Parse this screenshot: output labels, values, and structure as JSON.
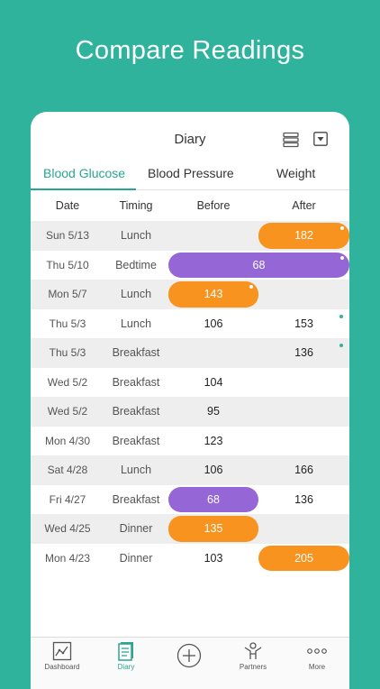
{
  "headline": "Compare Readings",
  "header": {
    "title": "Diary"
  },
  "tabs": [
    "Blood Glucose",
    "Blood Pressure",
    "Weight"
  ],
  "columns": {
    "date": "Date",
    "timing": "Timing",
    "before": "Before",
    "after": "After"
  },
  "rows": [
    {
      "date": "Sun 5/13",
      "timing": "Lunch",
      "before": "",
      "after": "182",
      "pill": "after",
      "color": "orange",
      "dot": "white"
    },
    {
      "date": "Thu 5/10",
      "timing": "Bedtime",
      "before": "",
      "after": "",
      "wide": "68",
      "pill": "wide",
      "color": "purple",
      "dot": "white"
    },
    {
      "date": "Mon 5/7",
      "timing": "Lunch",
      "before": "143",
      "after": "",
      "pill": "before",
      "color": "orange",
      "dot": "white"
    },
    {
      "date": "Thu 5/3",
      "timing": "Lunch",
      "before": "106",
      "after": "153",
      "pill": "",
      "dot": "teal"
    },
    {
      "date": "Thu 5/3",
      "timing": "Breakfast",
      "before": "",
      "after": "136",
      "pill": "",
      "dot": "teal"
    },
    {
      "date": "Wed 5/2",
      "timing": "Breakfast",
      "before": "104",
      "after": "",
      "pill": ""
    },
    {
      "date": "Wed 5/2",
      "timing": "Breakfast",
      "before": "95",
      "after": "",
      "pill": ""
    },
    {
      "date": "Mon 4/30",
      "timing": "Breakfast",
      "before": "123",
      "after": "",
      "pill": ""
    },
    {
      "date": "Sat 4/28",
      "timing": "Lunch",
      "before": "106",
      "after": "166",
      "pill": ""
    },
    {
      "date": "Fri 4/27",
      "timing": "Breakfast",
      "before": "68",
      "after": "136",
      "pill": "before",
      "color": "purple"
    },
    {
      "date": "Wed 4/25",
      "timing": "Dinner",
      "before": "135",
      "after": "",
      "pill": "before",
      "color": "orange"
    },
    {
      "date": "Mon 4/23",
      "timing": "Dinner",
      "before": "103",
      "after": "205",
      "pill": "after",
      "color": "orange"
    }
  ],
  "tabbar": [
    {
      "label": "Dashboard",
      "icon": "dashboard-icon"
    },
    {
      "label": "Diary",
      "icon": "diary-icon"
    },
    {
      "label": "",
      "icon": "add-icon"
    },
    {
      "label": "Partners",
      "icon": "partners-icon"
    },
    {
      "label": "More",
      "icon": "more-icon"
    }
  ],
  "colors": {
    "background": "#2fb39c",
    "accent": "#27a690",
    "high": "#f7931e",
    "low": "#9566d6"
  }
}
